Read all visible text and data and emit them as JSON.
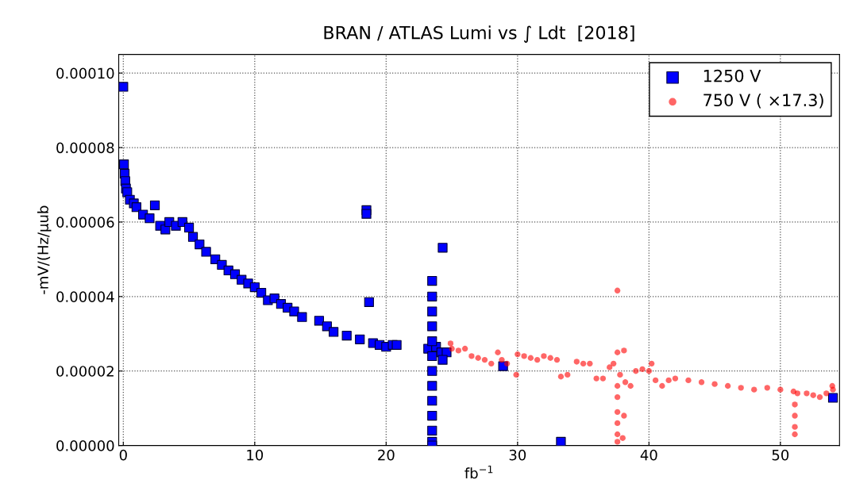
{
  "chart_data": {
    "type": "scatter",
    "title": "BRAN / ATLAS Lumi vs ∫ Ldt  [2018]",
    "xlabel": "fb$^{−1}$",
    "ylabel": "-mV/(Hz/μub",
    "xlim": [
      -0.35,
      54.5
    ],
    "ylim": [
      0,
      0.000105
    ],
    "xticks": [
      0,
      10,
      20,
      30,
      40,
      50
    ],
    "yticks": [
      {
        "value": 0,
        "label": "0.00000"
      },
      {
        "value": 2e-05,
        "label": "0.00002"
      },
      {
        "value": 4e-05,
        "label": "0.00004"
      },
      {
        "value": 6e-05,
        "label": "0.00006"
      },
      {
        "value": 8e-05,
        "label": "0.00008"
      },
      {
        "value": 0.0001,
        "label": "0.00010"
      }
    ],
    "grid": true,
    "legend": "top right",
    "series": [
      {
        "name": "1250 V",
        "color": "#0000ff",
        "marker": "square",
        "x": [
          0,
          0.05,
          0.1,
          0.15,
          0.2,
          0.3,
          0.5,
          0.8,
          1.0,
          1.5,
          2.0,
          2.4,
          2.8,
          3.2,
          3.5,
          4.0,
          4.5,
          5.0,
          5.3,
          5.8,
          6.3,
          7.0,
          7.5,
          8.0,
          8.5,
          9.0,
          9.5,
          10.0,
          10.5,
          11.0,
          11.5,
          12.0,
          12.5,
          13.0,
          13.6,
          14.9,
          15.5,
          16.0,
          17.0,
          18.0,
          19.0,
          19.5,
          20.0,
          20.5,
          20.8,
          18.5,
          18.5,
          18.7,
          23.2,
          23.8,
          24.2,
          24.6,
          24.3,
          23.5,
          23.5,
          23.5,
          23.5,
          23.5,
          23.5,
          23.5,
          23.5,
          23.5,
          23.5,
          23.5,
          23.5,
          23.5,
          24.3,
          28.9,
          33.3,
          54.0
        ],
        "values": [
          9.63e-05,
          7.55e-05,
          7.3e-05,
          7.1e-05,
          6.9e-05,
          6.8e-05,
          6.6e-05,
          6.5e-05,
          6.4e-05,
          6.2e-05,
          6.1e-05,
          6.45e-05,
          5.9e-05,
          5.8e-05,
          6e-05,
          5.9e-05,
          6e-05,
          5.85e-05,
          5.6e-05,
          5.4e-05,
          5.2e-05,
          5e-05,
          4.85e-05,
          4.7e-05,
          4.6e-05,
          4.45e-05,
          4.35e-05,
          4.25e-05,
          4.1e-05,
          3.9e-05,
          3.95e-05,
          3.8e-05,
          3.7e-05,
          3.6e-05,
          3.45e-05,
          3.35e-05,
          3.2e-05,
          3.05e-05,
          2.95e-05,
          2.85e-05,
          2.75e-05,
          2.7e-05,
          2.65e-05,
          2.7e-05,
          2.7e-05,
          6.32e-05,
          6.22e-05,
          3.85e-05,
          2.6e-05,
          2.65e-05,
          2.5e-05,
          2.5e-05,
          2.3e-05,
          4.42e-05,
          4e-05,
          3.6e-05,
          3.2e-05,
          2.8e-05,
          2.4e-05,
          2e-05,
          1.6e-05,
          1.2e-05,
          8e-06,
          4e-06,
          1e-06,
          0,
          5.31e-05,
          2.13e-05,
          1e-06,
          1.28e-05
        ]
      },
      {
        "name": "750 V ( ×17.3)",
        "color": "#ff0000",
        "marker": "circle",
        "x": [
          24.9,
          25.0,
          25.5,
          26.0,
          26.5,
          27.0,
          27.5,
          28.0,
          28.5,
          28.8,
          29.2,
          29.9,
          30.0,
          30.5,
          31.0,
          31.5,
          32.0,
          32.5,
          33.0,
          33.3,
          33.8,
          34.5,
          35.0,
          35.5,
          36.0,
          36.5,
          37.0,
          37.3,
          37.6,
          37.6,
          37.6,
          37.6,
          37.6,
          37.6,
          37.6,
          37.6,
          38.1,
          38.1,
          38.0,
          37.8,
          38.2,
          38.6,
          39.0,
          39.5,
          40.0,
          40.2,
          40.5,
          41.0,
          41.5,
          42.0,
          43.0,
          44.0,
          45.0,
          46.0,
          47.0,
          48.0,
          49.0,
          50.0,
          51.0,
          51.1,
          51.1,
          51.1,
          51.1,
          51.3,
          52.0,
          52.5,
          53.0,
          53.5,
          53.95,
          54.0
        ],
        "values": [
          2.74e-05,
          2.6e-05,
          2.55e-05,
          2.6e-05,
          2.4e-05,
          2.35e-05,
          2.3e-05,
          2.2e-05,
          2.5e-05,
          2.3e-05,
          2.2e-05,
          1.9e-05,
          2.45e-05,
          2.4e-05,
          2.35e-05,
          2.3e-05,
          2.4e-05,
          2.35e-05,
          2.3e-05,
          1.85e-05,
          1.9e-05,
          2.25e-05,
          2.2e-05,
          2.2e-05,
          1.8e-05,
          1.8e-05,
          2.1e-05,
          2.2e-05,
          2.5e-05,
          4.16e-05,
          1.6e-05,
          1.3e-05,
          9e-06,
          6e-06,
          3e-06,
          1e-06,
          2.55e-05,
          8e-06,
          2e-06,
          1.9e-05,
          1.7e-05,
          1.6e-05,
          2e-05,
          2.05e-05,
          2e-05,
          2.2e-05,
          1.75e-05,
          1.6e-05,
          1.75e-05,
          1.8e-05,
          1.75e-05,
          1.7e-05,
          1.65e-05,
          1.6e-05,
          1.55e-05,
          1.5e-05,
          1.55e-05,
          1.5e-05,
          1.45e-05,
          1.1e-05,
          8e-06,
          5e-06,
          3e-06,
          1.4e-05,
          1.4e-05,
          1.35e-05,
          1.3e-05,
          1.4e-05,
          1.6e-05,
          1.5e-05
        ]
      }
    ]
  }
}
